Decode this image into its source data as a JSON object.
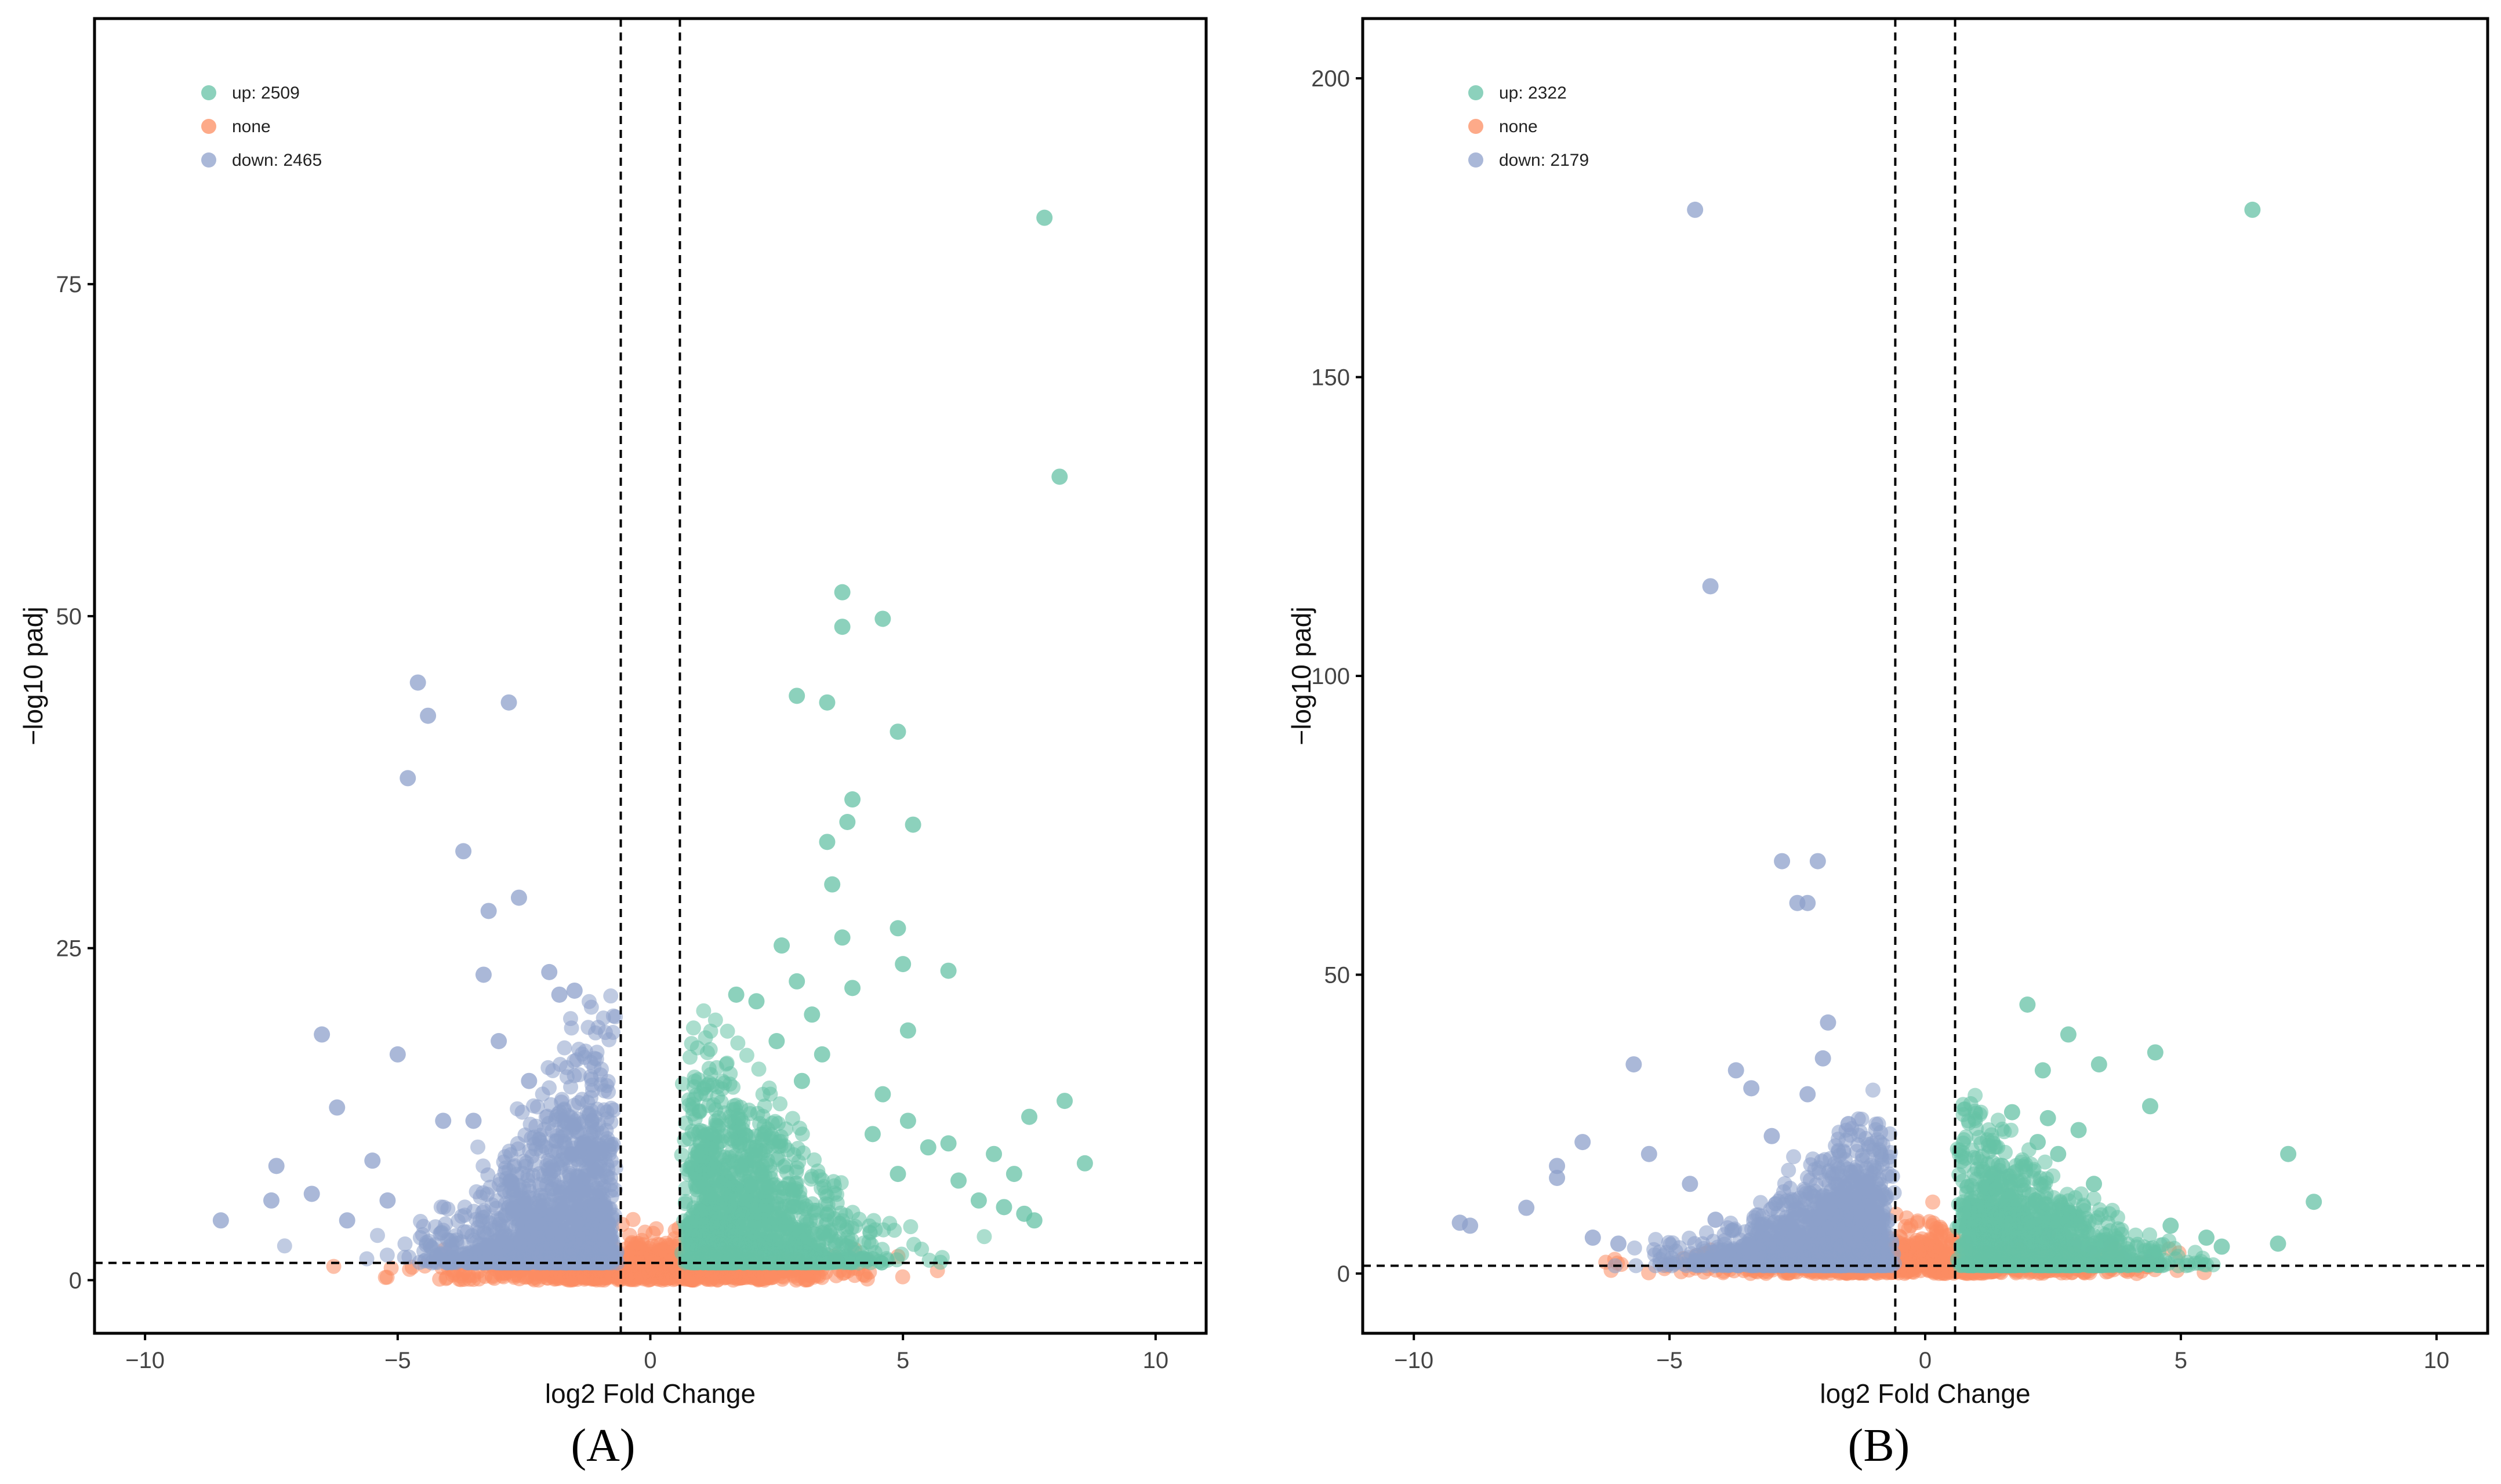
{
  "colors": {
    "up": "#66c2a5",
    "none": "#fc8d62",
    "down": "#8da0cb"
  },
  "chart_data": [
    {
      "type": "scatter",
      "panel_label": "(A)",
      "xlabel": "log2 Fold Change",
      "ylabel": "−log10 padj",
      "xlim": [
        -11,
        11
      ],
      "ylim": [
        -4,
        95
      ],
      "x_ticks": [
        {
          "value": -10,
          "label": "−10"
        },
        {
          "value": -5,
          "label": "−5"
        },
        {
          "value": 0,
          "label": "0"
        },
        {
          "value": 5,
          "label": "5"
        },
        {
          "value": 10,
          "label": "10"
        }
      ],
      "y_ticks": [
        {
          "value": 0,
          "label": "0"
        },
        {
          "value": 25,
          "label": "25"
        },
        {
          "value": 50,
          "label": "50"
        },
        {
          "value": 75,
          "label": "75"
        }
      ],
      "fc_threshold": 0.585,
      "padj_threshold": 1.3,
      "legend": [
        {
          "key": "up",
          "label": "up: 2509"
        },
        {
          "key": "none",
          "label": "none"
        },
        {
          "key": "down",
          "label": "down: 2465"
        }
      ],
      "series": [
        {
          "name": "up",
          "points": [
            [
              7.8,
              80
            ],
            [
              8.1,
              60.5
            ],
            [
              3.8,
              51.8
            ],
            [
              4.6,
              49.8
            ],
            [
              3.8,
              49.2
            ],
            [
              2.9,
              44
            ],
            [
              3.5,
              43.5
            ],
            [
              4.9,
              41.3
            ],
            [
              4.0,
              36.2
            ],
            [
              3.9,
              34.5
            ],
            [
              5.2,
              34.3
            ],
            [
              3.5,
              33
            ],
            [
              3.6,
              29.8
            ],
            [
              2.6,
              25.2
            ],
            [
              4.9,
              26.5
            ],
            [
              3.8,
              25.8
            ],
            [
              5.0,
              23.8
            ],
            [
              5.9,
              23.3
            ],
            [
              2.9,
              22.5
            ],
            [
              4.0,
              22
            ],
            [
              1.7,
              21.5
            ],
            [
              2.1,
              21
            ],
            [
              3.2,
              20
            ],
            [
              5.1,
              18.8
            ],
            [
              2.5,
              18
            ],
            [
              7.5,
              12.3
            ],
            [
              8.2,
              13.5
            ],
            [
              8.6,
              8.8
            ],
            [
              7.2,
              8
            ],
            [
              6.8,
              9.5
            ],
            [
              6.5,
              6
            ],
            [
              7.0,
              5.5
            ],
            [
              7.4,
              5
            ],
            [
              7.6,
              4.5
            ],
            [
              6.1,
              7.5
            ],
            [
              5.5,
              10
            ],
            [
              5.9,
              10.3
            ],
            [
              5.1,
              12
            ],
            [
              4.6,
              14
            ],
            [
              4.9,
              8
            ],
            [
              4.4,
              11
            ],
            [
              3.4,
              17
            ],
            [
              3.0,
              15
            ]
          ]
        },
        {
          "name": "down",
          "points": [
            [
              -4.6,
              45
            ],
            [
              -4.4,
              42.5
            ],
            [
              -2.8,
              43.5
            ],
            [
              -4.8,
              37.8
            ],
            [
              -3.7,
              32.3
            ],
            [
              -3.2,
              27.8
            ],
            [
              -2.6,
              28.8
            ],
            [
              -1.5,
              21.8
            ],
            [
              -2.0,
              23.2
            ],
            [
              -3.3,
              23
            ],
            [
              -1.8,
              21.5
            ],
            [
              -6.5,
              18.5
            ],
            [
              -5.0,
              17
            ],
            [
              -6.2,
              13
            ],
            [
              -7.4,
              8.6
            ],
            [
              -8.5,
              4.5
            ],
            [
              -7.5,
              6
            ],
            [
              -5.5,
              9
            ],
            [
              -5.2,
              6
            ],
            [
              -4.1,
              12
            ],
            [
              -3.0,
              18
            ],
            [
              -2.4,
              15
            ],
            [
              -3.5,
              12
            ],
            [
              -6.0,
              4.5
            ],
            [
              -6.7,
              6.5
            ]
          ]
        }
      ]
    },
    {
      "type": "scatter",
      "panel_label": "(B)",
      "xlabel": "log2 Fold Change",
      "ylabel": "−log10 padj",
      "xlim": [
        -11,
        11
      ],
      "ylim": [
        -10,
        210
      ],
      "x_ticks": [
        {
          "value": -10,
          "label": "−10"
        },
        {
          "value": -5,
          "label": "−5"
        },
        {
          "value": 0,
          "label": "0"
        },
        {
          "value": 5,
          "label": "5"
        },
        {
          "value": 10,
          "label": "10"
        }
      ],
      "y_ticks": [
        {
          "value": 0,
          "label": "0"
        },
        {
          "value": 50,
          "label": "50"
        },
        {
          "value": 100,
          "label": "100"
        },
        {
          "value": 150,
          "label": "150"
        },
        {
          "value": 200,
          "label": "200"
        }
      ],
      "fc_threshold": 0.585,
      "padj_threshold": 1.3,
      "legend": [
        {
          "key": "up",
          "label": "up: 2322"
        },
        {
          "key": "none",
          "label": "none"
        },
        {
          "key": "down",
          "label": "down: 2179"
        }
      ],
      "series": [
        {
          "name": "up",
          "points": [
            [
              6.4,
              178
            ],
            [
              2.0,
              45
            ],
            [
              2.8,
              40
            ],
            [
              3.4,
              35
            ],
            [
              4.5,
              37
            ],
            [
              2.3,
              34
            ],
            [
              4.4,
              28
            ],
            [
              2.4,
              26
            ],
            [
              1.7,
              27
            ],
            [
              7.1,
              20
            ],
            [
              7.6,
              12
            ],
            [
              2.2,
              22
            ],
            [
              3.0,
              24
            ],
            [
              6.9,
              5
            ],
            [
              5.5,
              6
            ],
            [
              5.8,
              4.5
            ],
            [
              4.8,
              8
            ],
            [
              1.5,
              18
            ],
            [
              3.3,
              15
            ],
            [
              2.6,
              20
            ]
          ]
        },
        {
          "name": "down",
          "points": [
            [
              -4.5,
              178
            ],
            [
              -4.2,
              115
            ],
            [
              -2.8,
              69
            ],
            [
              -2.1,
              69
            ],
            [
              -2.5,
              62
            ],
            [
              -2.3,
              62
            ],
            [
              -1.9,
              42
            ],
            [
              -2.0,
              36
            ],
            [
              -3.7,
              34
            ],
            [
              -5.7,
              35
            ],
            [
              -3.4,
              31
            ],
            [
              -2.3,
              30
            ],
            [
              -9.1,
              8.5
            ],
            [
              -8.9,
              8
            ],
            [
              -7.2,
              18
            ],
            [
              -7.2,
              16
            ],
            [
              -6.7,
              22
            ],
            [
              -7.8,
              11
            ],
            [
              -6.5,
              6
            ],
            [
              -5.4,
              20
            ],
            [
              -4.6,
              15
            ],
            [
              -3.0,
              23
            ],
            [
              -1.5,
              25
            ],
            [
              -4.1,
              9
            ],
            [
              -6.0,
              5
            ]
          ]
        }
      ]
    }
  ]
}
